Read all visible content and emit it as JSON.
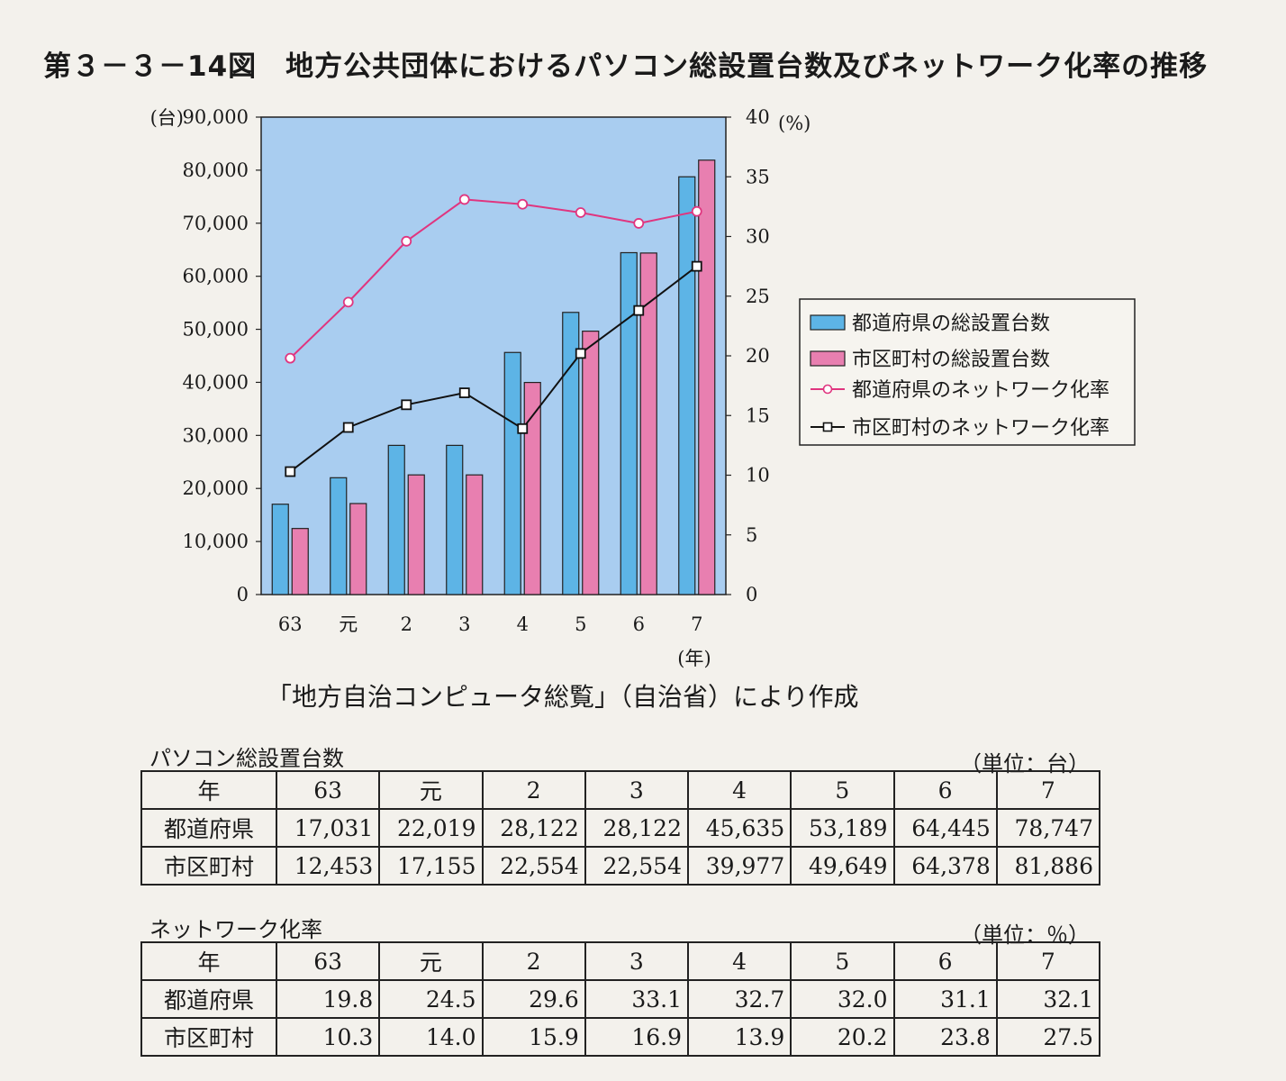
{
  "title": "第３－３－14図　地方公共団体におけるパソコン総設置台数及びネットワーク化率の推移",
  "chart_data": {
    "type": "bar+line",
    "categories": [
      "63",
      "元",
      "2",
      "3",
      "4",
      "5",
      "6",
      "7"
    ],
    "y_left": {
      "unit": "(台)",
      "range": [
        0,
        90000
      ],
      "ticks": [
        "0",
        "10,000",
        "20,000",
        "30,000",
        "40,000",
        "50,000",
        "60,000",
        "70,000",
        "80,000",
        "90,000"
      ]
    },
    "y_right": {
      "unit": "(%)",
      "range": [
        0,
        40
      ],
      "ticks": [
        "0",
        "5",
        "10",
        "15",
        "20",
        "25",
        "30",
        "35",
        "40"
      ]
    },
    "x_unit": "(年)",
    "bar_series": [
      {
        "name": "都道府県の総設置台数",
        "color": "#5db4e6",
        "values": [
          17031,
          22019,
          28122,
          28122,
          45635,
          53189,
          64445,
          78747
        ]
      },
      {
        "name": "市区町村の総設置台数",
        "color": "#e87fb0",
        "values": [
          12453,
          17155,
          22554,
          22554,
          39977,
          49649,
          64378,
          81886
        ]
      }
    ],
    "line_series": [
      {
        "name": "都道府県のネットワーク化率",
        "color": "#e0357f",
        "marker": "circle",
        "values": [
          19.8,
          24.5,
          29.6,
          33.1,
          32.7,
          32.0,
          31.1,
          32.1
        ]
      },
      {
        "name": "市区町村のネットワーク化率",
        "color": "#111111",
        "marker": "square",
        "values": [
          10.3,
          14.0,
          15.9,
          16.9,
          13.9,
          20.2,
          23.8,
          27.5
        ]
      }
    ],
    "plot_background": "#a9cdf0",
    "legend_position": "right"
  },
  "source": "「地方自治コンピュータ総覧」（自治省）により作成",
  "table_pc": {
    "caption": "パソコン総設置台数",
    "unit": "（単位：台）",
    "header": [
      "年",
      "63",
      "元",
      "2",
      "3",
      "4",
      "5",
      "6",
      "7"
    ],
    "rows": [
      [
        "都道府県",
        "17,031",
        "22,019",
        "28,122",
        "28,122",
        "45,635",
        "53,189",
        "64,445",
        "78,747"
      ],
      [
        "市区町村",
        "12,453",
        "17,155",
        "22,554",
        "22,554",
        "39,977",
        "49,649",
        "64,378",
        "81,886"
      ]
    ]
  },
  "table_net": {
    "caption": "ネットワーク化率",
    "unit": "（単位：％）",
    "header": [
      "年",
      "63",
      "元",
      "2",
      "3",
      "4",
      "5",
      "6",
      "7"
    ],
    "rows": [
      [
        "都道府県",
        "19.8",
        "24.5",
        "29.6",
        "33.1",
        "32.7",
        "32.0",
        "31.1",
        "32.1"
      ],
      [
        "市区町村",
        "10.3",
        "14.0",
        "15.9",
        "16.9",
        "13.9",
        "20.2",
        "23.8",
        "27.5"
      ]
    ]
  }
}
